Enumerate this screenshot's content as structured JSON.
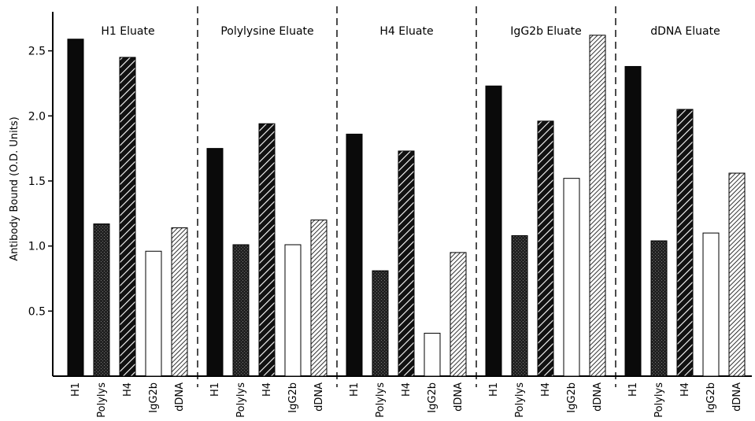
{
  "chart_data": {
    "type": "bar",
    "ylabel": "Antibody Bound (O.D. Units)",
    "ylim": [
      0,
      2.8
    ],
    "yticks": [
      "0.5",
      "1.0",
      "1.5",
      "2.0",
      "2.5"
    ],
    "grid": false,
    "categories": [
      "H1",
      "Polylys",
      "H4",
      "IgG2b",
      "dDNA"
    ],
    "fills": [
      "solid-black",
      "dark-stipple",
      "hatched-bold",
      "white",
      "hatched-fine"
    ],
    "panels": [
      {
        "title": "H1 Eluate",
        "values": [
          2.59,
          1.17,
          2.45,
          0.96,
          1.14
        ]
      },
      {
        "title": "Polylysine Eluate",
        "values": [
          1.75,
          1.01,
          1.94,
          1.01,
          1.2
        ]
      },
      {
        "title": "H4 Eluate",
        "values": [
          1.86,
          0.81,
          1.73,
          0.33,
          0.95
        ]
      },
      {
        "title": "IgG2b Eluate",
        "values": [
          2.23,
          1.08,
          1.96,
          1.52,
          2.62
        ]
      },
      {
        "title": "dDNA Eluate",
        "values": [
          2.38,
          1.04,
          2.05,
          1.1,
          1.56
        ]
      }
    ]
  }
}
